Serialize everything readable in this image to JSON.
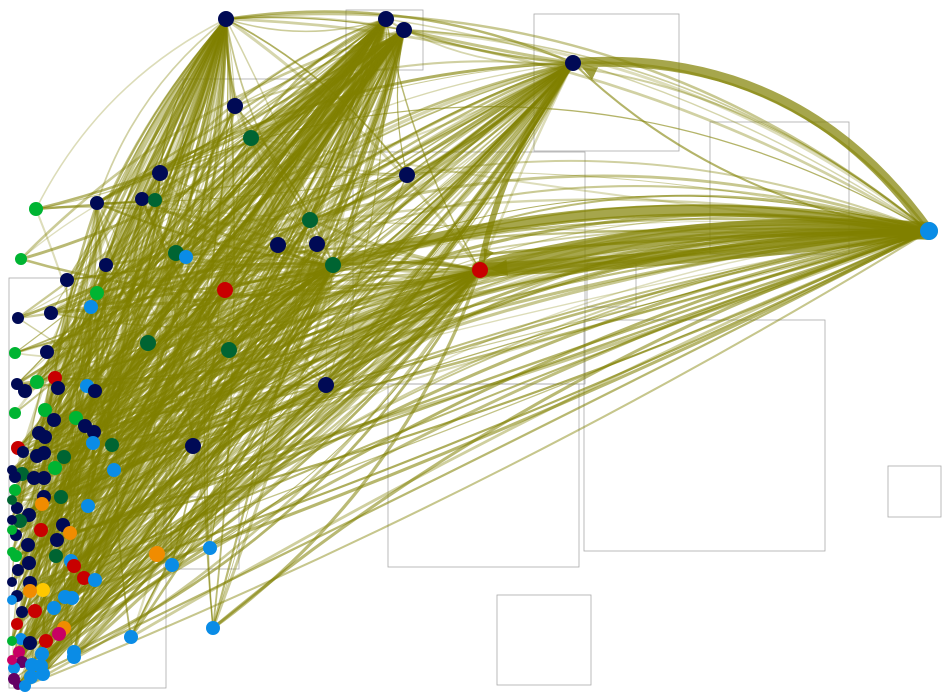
{
  "graph": {
    "edge_color": "#808000",
    "group_box_color": "#aaaaaa",
    "node_palette": {
      "navy": "#000a55",
      "darkgreen": "#006432",
      "green": "#00b432",
      "blue": "#0a8ce6",
      "red": "#c80000",
      "orange": "#f08c00",
      "yellow": "#ffc800",
      "magenta": "#c80064",
      "purple": "#640064"
    },
    "hubs": [
      "n_right_blue",
      "n_red_mid",
      "n_top_right_navy",
      "n_top_navy_2",
      "n_top_navy_3",
      "n_top_navy_1"
    ],
    "heavy_edges": [
      {
        "from": "n_red_mid",
        "to": "n_right_blue",
        "weight": 9
      },
      {
        "from": "n_right_blue",
        "to": "n_red_mid",
        "weight": 7
      },
      {
        "from": "n_darkgreen_mid",
        "to": "n_right_blue",
        "weight": 6
      },
      {
        "from": "n_right_blue",
        "to": "n_top_right_navy",
        "weight": 5
      },
      {
        "from": "n_top_right_navy",
        "to": "n_red_mid",
        "weight": 3
      }
    ]
  }
}
